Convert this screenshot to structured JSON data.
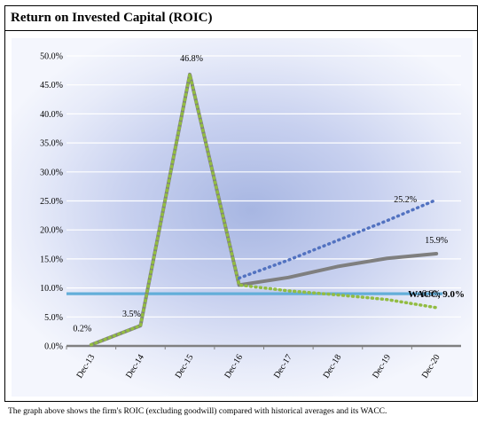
{
  "header": {
    "title": "Return on Invested Capital (ROIC)"
  },
  "caption": "The graph above shows the firm's ROIC (excluding goodwill) compared with historical averages and its WACC.",
  "chart_data": {
    "type": "line",
    "title": "Return on Invested Capital (ROIC)",
    "xlabel": "",
    "ylabel": "",
    "categories": [
      "Dec-13",
      "Dec-14",
      "Dec-15",
      "Dec-16",
      "Dec-17",
      "Dec-18",
      "Dec-19",
      "Dec-20"
    ],
    "y_ticks": [
      "0.0%",
      "5.0%",
      "10.0%",
      "15.0%",
      "20.0%",
      "25.0%",
      "30.0%",
      "35.0%",
      "40.0%",
      "45.0%",
      "50.0%"
    ],
    "ylim": [
      0,
      50
    ],
    "grid": true,
    "legend": "none",
    "series": [
      {
        "style": "solid-gray",
        "color": "#7f7f7f",
        "values": [
          0.2,
          3.5,
          46.8,
          10.5,
          11.8,
          13.7,
          15.1,
          15.9
        ]
      },
      {
        "style": "dotted-green",
        "color": "#92bc42",
        "values": [
          0.2,
          3.5,
          46.8,
          10.5,
          9.5,
          8.8,
          8.0,
          6.6
        ]
      },
      {
        "style": "dotted-blue",
        "color": "#5272c0",
        "values": [
          null,
          null,
          null,
          11.7,
          14.8,
          18.2,
          21.6,
          25.2
        ]
      },
      {
        "style": "solid-cyan",
        "color": "#63aed9",
        "values": [
          9.0,
          9.0,
          9.0,
          9.0,
          9.0,
          9.0,
          9.0,
          9.0
        ]
      }
    ],
    "data_labels": [
      {
        "text": "0.2%",
        "x": "Dec-13",
        "y": 0.2
      },
      {
        "text": "3.5%",
        "x": "Dec-14",
        "y": 3.5
      },
      {
        "text": "46.8%",
        "x": "Dec-15",
        "y": 46.8
      },
      {
        "text": "25.2%",
        "x": "Dec-20",
        "y": 25.2
      },
      {
        "text": "15.9%",
        "x": "Dec-20",
        "y": 15.9
      },
      {
        "text": "6.6%",
        "x": "Dec-20",
        "y": 6.6
      },
      {
        "text": "WACC, 9.0%",
        "x": "Dec-20",
        "y": 9.0
      }
    ]
  }
}
